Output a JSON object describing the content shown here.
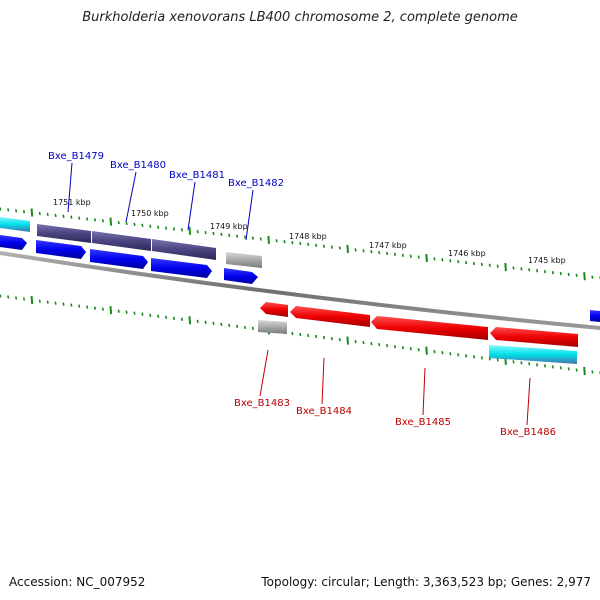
{
  "title": "Burkholderia xenovorans LB400 chromosome 2, complete genome",
  "footer": {
    "accession": "Accession: NC_007952",
    "stats": "Topology: circular; Length: 3,363,523 bp; Genes: 2,977"
  },
  "scale_labels": [
    "1751 kbp",
    "1750 kbp",
    "1749 kbp",
    "1748 kbp",
    "1747 kbp",
    "1746 kbp",
    "1745 kbp"
  ],
  "genes": [
    {
      "name": "Bxe_B1479",
      "strand": "forward",
      "color": "#1515c8"
    },
    {
      "name": "Bxe_B1480",
      "strand": "forward",
      "color": "#1515c8"
    },
    {
      "name": "Bxe_B1481",
      "strand": "forward",
      "color": "#1515c8"
    },
    {
      "name": "Bxe_B1482",
      "strand": "forward",
      "color": "#1515c8"
    },
    {
      "name": "Bxe_B1483",
      "strand": "reverse",
      "color": "#d40000"
    },
    {
      "name": "Bxe_B1484",
      "strand": "reverse",
      "color": "#d40000"
    },
    {
      "name": "Bxe_B1485",
      "strand": "reverse",
      "color": "#d40000"
    },
    {
      "name": "Bxe_B1486",
      "strand": "reverse",
      "color": "#d40000"
    }
  ],
  "colors": {
    "forward_gene": "#0a0aff",
    "reverse_gene": "#ff0000",
    "cog_purple": "#4a4580",
    "cog_cyan": "#00e0e8",
    "cog_gray": "#a8a8a8",
    "ticks": "#1a8a1a",
    "backbone": "#808080"
  }
}
